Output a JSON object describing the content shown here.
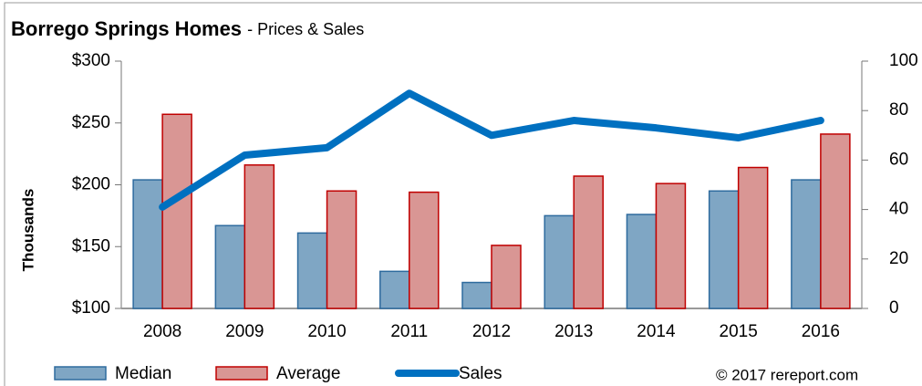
{
  "chart_data": {
    "type": "bar",
    "title": "Borrego Springs Homes",
    "subtitle": "- Prices & Sales",
    "y_label": "Thousands",
    "annotation": "© 2017 rereport.com",
    "categories": [
      "2008",
      "2009",
      "2010",
      "2011",
      "2012",
      "2013",
      "2014",
      "2015",
      "2016"
    ],
    "series": [
      {
        "name": "Median",
        "color": "#7fa6c4",
        "values": [
          204,
          167,
          161,
          130,
          121,
          175,
          176,
          195,
          204
        ]
      },
      {
        "name": "Average",
        "color": "#d99694",
        "values": [
          257,
          216,
          195,
          194,
          151,
          207,
          201,
          214,
          241
        ]
      },
      {
        "name": "Sales",
        "color": "#0070c0",
        "type": "line",
        "axis": "y2",
        "values": [
          41,
          62,
          65,
          87,
          70,
          76,
          73,
          69,
          76
        ]
      }
    ],
    "ylim": [
      100,
      300
    ],
    "yticks": [
      {
        "value": 100,
        "label": "$100"
      },
      {
        "value": 150,
        "label": "$150"
      },
      {
        "value": 200,
        "label": "$200"
      },
      {
        "value": 250,
        "label": "$250"
      },
      {
        "value": 300,
        "label": "$300"
      }
    ],
    "y2lim": [
      0,
      100
    ],
    "y2ticks": [
      0,
      20,
      40,
      60,
      80,
      100
    ],
    "grid": false
  }
}
